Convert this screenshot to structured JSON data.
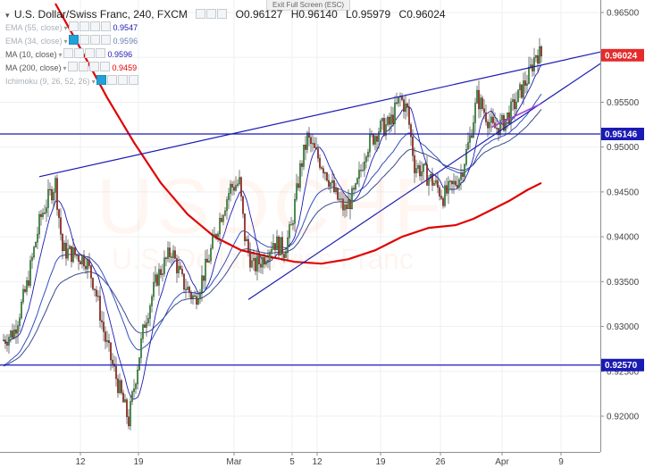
{
  "header": {
    "symbol_title": "U.S. Dollar/Swiss Franc, 240, FXCM",
    "ohlc": [
      {
        "label": "O",
        "value": "0.96127"
      },
      {
        "label": "H",
        "value": "0.96140"
      },
      {
        "label": "L",
        "value": "0.95979"
      },
      {
        "label": "C",
        "value": "0.96024"
      }
    ],
    "exit_fullscreen": "Exit Full Screen (ESC)"
  },
  "indicators": [
    {
      "label": "EMA (55, close)",
      "value": "0.9547",
      "color": "#1a1ab4",
      "faint": true
    },
    {
      "label": "EMA (34, close)",
      "value": "0.9596",
      "color": "#6a7fb0",
      "faint": true
    },
    {
      "label": "MA (10, close)",
      "value": "0.9596",
      "color": "#1a1ab4",
      "faint": false
    },
    {
      "label": "MA (200, close)",
      "value": "0.9459",
      "color": "#e00000",
      "faint": false
    },
    {
      "label": "Ichimoku (9, 26, 52, 26)",
      "value": "",
      "color": "#999999",
      "faint": true
    }
  ],
  "watermark": {
    "pair": "USDCHF",
    "name": "U.S. Dollar/Swiss Franc"
  },
  "chart_data": {
    "type": "candlestick",
    "y_axis": {
      "min": 0.917,
      "max": 0.9655,
      "ticks": [
        "0.96500",
        "0.96000",
        "0.95500",
        "0.95000",
        "0.94500",
        "0.94000",
        "0.93500",
        "0.93000",
        "0.92500",
        "0.92000"
      ],
      "tick_values": [
        0.965,
        0.96,
        0.955,
        0.95,
        0.945,
        0.94,
        0.935,
        0.93,
        0.925,
        0.92
      ]
    },
    "x_axis": {
      "ticks": [
        "12",
        "19",
        "Mar",
        "5",
        "12",
        "19",
        "26",
        "Apr",
        "9"
      ]
    },
    "price_badges": [
      {
        "value": "0.96024",
        "color": "#e52b2b"
      },
      {
        "value": "0.95146",
        "color": "#1a1ab4"
      },
      {
        "value": "0.92570",
        "color": "#1a1ab4"
      }
    ],
    "horizontal_lines": [
      0.95146,
      0.9257
    ],
    "candles_count": 300,
    "up_color": "#4caf50",
    "down_color": "#c0392b",
    "ma200_color": "#e00000",
    "ema_color": "#1a1ab4",
    "trendline_color": "#1a1ab4",
    "channel_color": "#a040d0"
  }
}
